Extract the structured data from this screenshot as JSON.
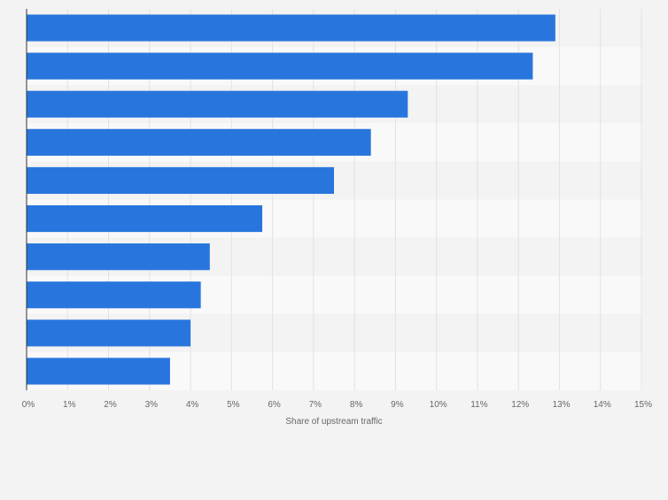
{
  "chart_data": {
    "type": "bar",
    "orientation": "horizontal",
    "categories": [
      "",
      "",
      "",
      "",
      "",
      "",
      "",
      "",
      "",
      ""
    ],
    "values": [
      12.9,
      12.35,
      9.3,
      8.4,
      7.5,
      5.75,
      4.47,
      4.25,
      4.0,
      3.5
    ],
    "xlabel": "Share of upstream traffic",
    "ylabel": "",
    "xlim": [
      0,
      15
    ],
    "xticks": [
      "0%",
      "1%",
      "2%",
      "3%",
      "4%",
      "5%",
      "6%",
      "7%",
      "8%",
      "9%",
      "10%",
      "11%",
      "12%",
      "13%",
      "14%",
      "15%"
    ],
    "grid": true,
    "legend": "none",
    "colors": {
      "bar": "#2876dd",
      "plot_band_dark": "#f3f3f3",
      "plot_band_light": "#f9f9f9",
      "gridline": "#e2e2e2",
      "axis_line": "#333333",
      "tick_label": "#666666"
    }
  }
}
